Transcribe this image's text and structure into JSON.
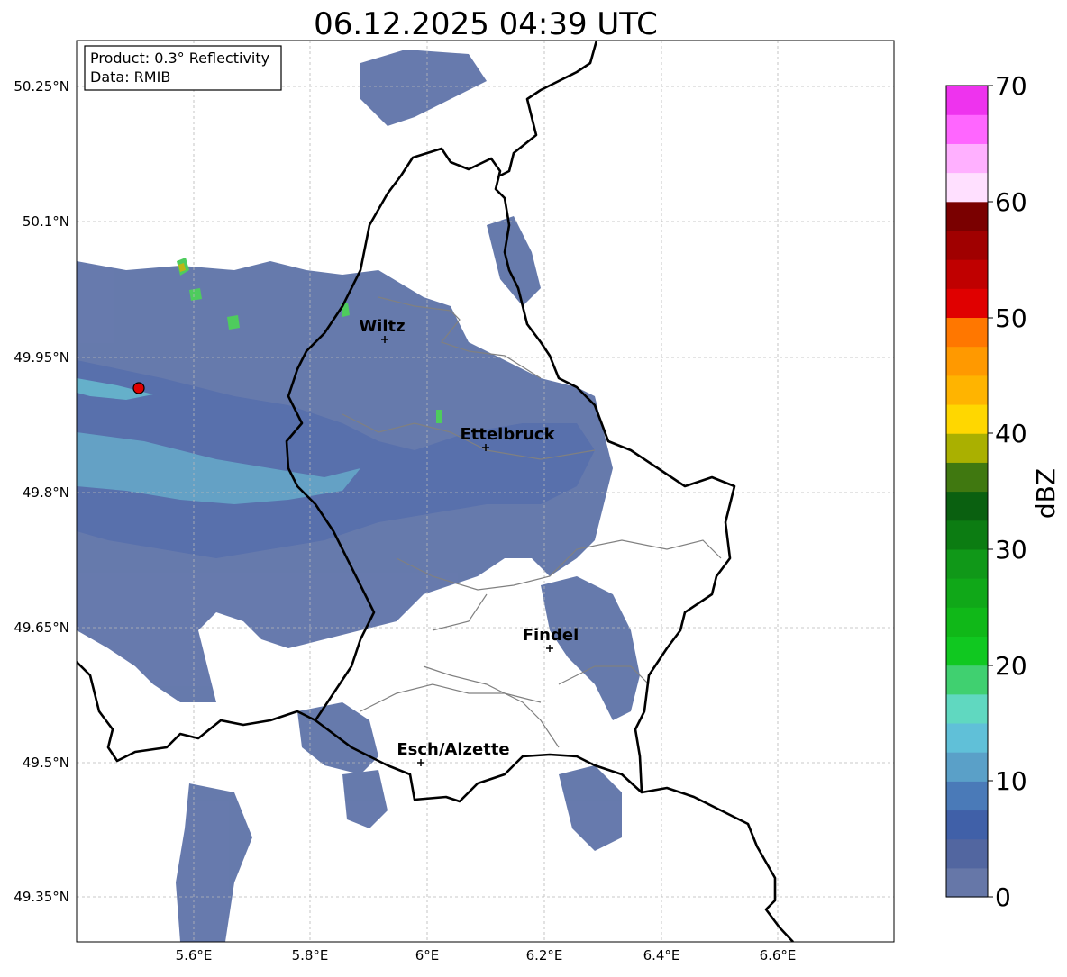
{
  "title": "06.12.2025 04:39 UTC",
  "info": {
    "product": "Product: 0.3° Reflectivity",
    "data": "Data: RMIB"
  },
  "axes": {
    "lon_ticks": [
      "5.6°E",
      "5.8°E",
      "6°E",
      "6.2°E",
      "6.4°E",
      "6.6°E"
    ],
    "lat_ticks": [
      "50.25°N",
      "50.1°N",
      "49.95°N",
      "49.8°N",
      "49.65°N",
      "49.5°N",
      "49.35°N"
    ]
  },
  "cities": [
    {
      "name": "Wiltz",
      "lon": 5.93,
      "lat": 49.97
    },
    {
      "name": "Ettelbruck",
      "lon": 6.1,
      "lat": 49.85
    },
    {
      "name": "Findel",
      "lon": 6.21,
      "lat": 49.63
    },
    {
      "name": "Esch/Alzette",
      "lon": 5.99,
      "lat": 49.5
    }
  ],
  "radar_site": {
    "lon": 5.505,
    "lat": 49.915,
    "color": "#e00000"
  },
  "colorbar": {
    "label": "dBZ",
    "ticks": [
      "0",
      "10",
      "20",
      "30",
      "40",
      "50",
      "60",
      "70"
    ],
    "colors": [
      "#6677a8",
      "#5266a0",
      "#4060a8",
      "#4a7ab8",
      "#5aa0c8",
      "#60c0d8",
      "#60d8c0",
      "#40d070",
      "#10c820",
      "#10b818",
      "#10a818",
      "#109818",
      "#0c7c12",
      "#0a6010",
      "#407810",
      "#aab000",
      "#ffd700",
      "#ffb400",
      "#ff9900",
      "#ff7700",
      "#e00000",
      "#c00000",
      "#a00000",
      "#7a0000",
      "#ffe0ff",
      "#ffb0ff",
      "#ff66ff",
      "#ee33ee"
    ]
  }
}
